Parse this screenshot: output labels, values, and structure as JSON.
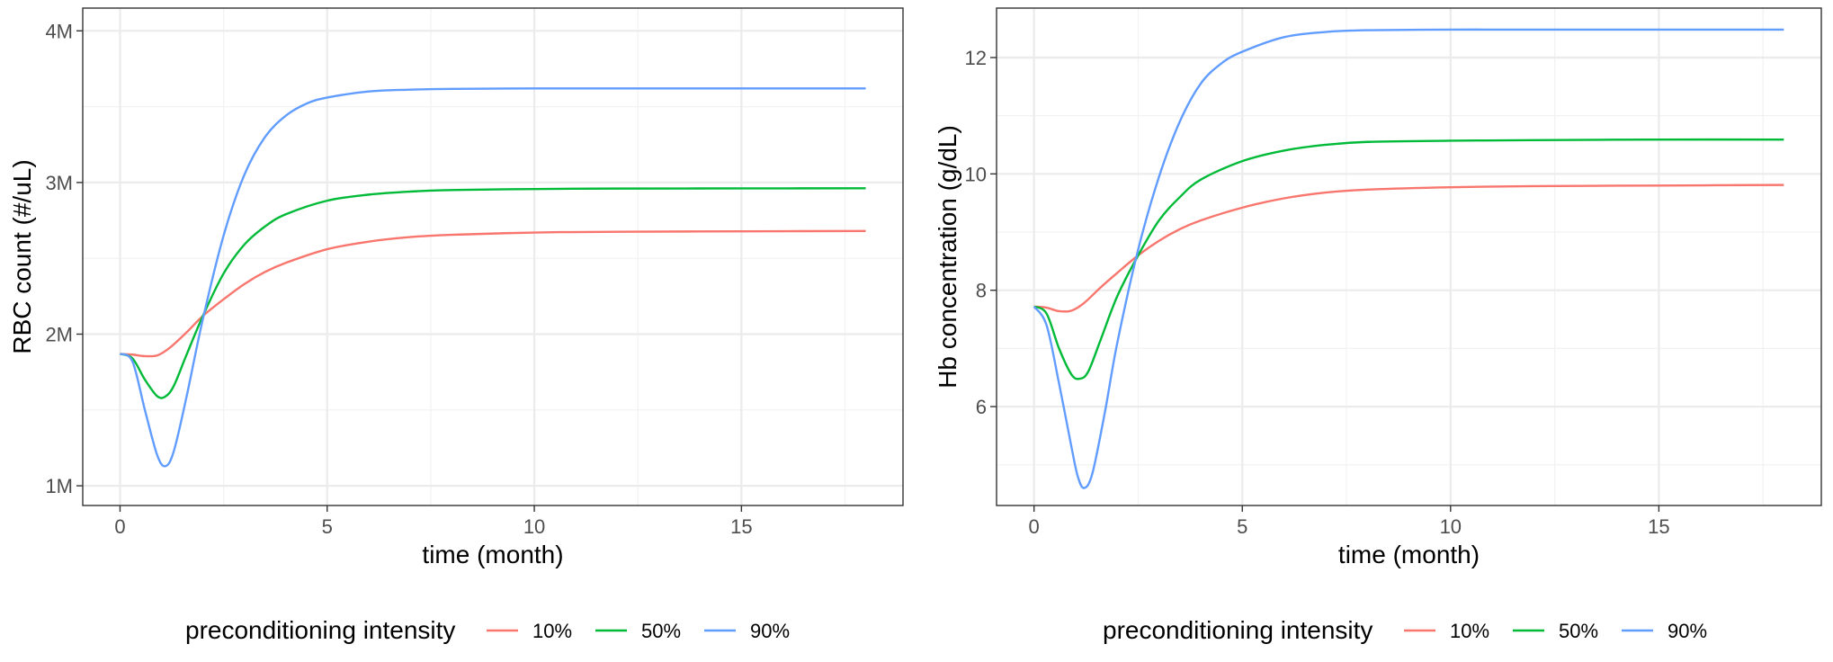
{
  "chart_data": [
    {
      "type": "line",
      "xlabel": "time (month)",
      "ylabel": "RBC count (#/uL)",
      "xlim": [
        -0.9,
        18.9
      ],
      "ylim": [
        870000,
        4150000
      ],
      "x_ticks": [
        0,
        5,
        10,
        15
      ],
      "x_tick_labels": [
        "0",
        "5",
        "10",
        "15"
      ],
      "y_ticks": [
        1000000,
        2000000,
        3000000,
        4000000
      ],
      "y_tick_labels": [
        "1M",
        "2M",
        "3M",
        "4M"
      ],
      "grid": true,
      "legend": {
        "title": "preconditioning intensity",
        "position": "bottom",
        "entries": [
          "10%",
          "50%",
          "90%"
        ]
      },
      "series": [
        {
          "name": "10%",
          "color": "#F8766D",
          "x": [
            0,
            0.3,
            0.6,
            0.9,
            1.2,
            1.6,
            2.0,
            2.5,
            3.0,
            3.5,
            4.0,
            5.0,
            6.0,
            7.0,
            8.0,
            10.0,
            12.0,
            15.0,
            18.0
          ],
          "y": [
            1870000,
            1865000,
            1855000,
            1860000,
            1910000,
            2010000,
            2120000,
            2230000,
            2330000,
            2410000,
            2470000,
            2560000,
            2610000,
            2640000,
            2655000,
            2670000,
            2675000,
            2678000,
            2680000
          ]
        },
        {
          "name": "50%",
          "color": "#00BA38",
          "x": [
            0,
            0.3,
            0.6,
            0.9,
            1.1,
            1.3,
            1.6,
            2.0,
            2.5,
            3.0,
            3.5,
            4.0,
            5.0,
            6.0,
            7.0,
            8.0,
            10.0,
            12.0,
            15.0,
            18.0
          ],
          "y": [
            1870000,
            1840000,
            1700000,
            1590000,
            1590000,
            1660000,
            1860000,
            2120000,
            2400000,
            2590000,
            2710000,
            2790000,
            2880000,
            2920000,
            2940000,
            2950000,
            2957000,
            2960000,
            2961000,
            2962000
          ]
        },
        {
          "name": "90%",
          "color": "#619CFF",
          "x": [
            0,
            0.3,
            0.6,
            0.9,
            1.1,
            1.3,
            1.6,
            2.0,
            2.5,
            3.0,
            3.5,
            4.0,
            4.5,
            5.0,
            6.0,
            7.0,
            8.0,
            10.0,
            12.0,
            15.0,
            18.0
          ],
          "y": [
            1870000,
            1820000,
            1500000,
            1200000,
            1130000,
            1230000,
            1580000,
            2100000,
            2650000,
            3050000,
            3300000,
            3440000,
            3520000,
            3560000,
            3600000,
            3612000,
            3617000,
            3620000,
            3620000,
            3620000,
            3620000
          ]
        }
      ]
    },
    {
      "type": "line",
      "xlabel": "time (month)",
      "ylabel": "Hb concentration (g/dL)",
      "xlim": [
        -0.9,
        18.9
      ],
      "ylim": [
        4.3,
        12.85
      ],
      "x_ticks": [
        0,
        5,
        10,
        15
      ],
      "x_tick_labels": [
        "0",
        "5",
        "10",
        "15"
      ],
      "y_ticks": [
        6,
        8,
        10,
        12
      ],
      "y_tick_labels": [
        "6",
        "8",
        "10",
        "12"
      ],
      "grid": true,
      "legend": {
        "title": "preconditioning intensity",
        "position": "bottom",
        "entries": [
          "10%",
          "50%",
          "90%"
        ]
      },
      "series": [
        {
          "name": "10%",
          "color": "#F8766D",
          "x": [
            0,
            0.3,
            0.6,
            0.9,
            1.2,
            1.6,
            2.0,
            2.5,
            3.0,
            3.5,
            4.0,
            5.0,
            6.0,
            7.0,
            8.0,
            10.0,
            12.0,
            15.0,
            18.0
          ],
          "y": [
            7.72,
            7.7,
            7.64,
            7.65,
            7.78,
            8.05,
            8.3,
            8.6,
            8.85,
            9.05,
            9.2,
            9.42,
            9.58,
            9.68,
            9.73,
            9.77,
            9.79,
            9.8,
            9.81
          ]
        },
        {
          "name": "50%",
          "color": "#00BA38",
          "x": [
            0,
            0.3,
            0.6,
            0.9,
            1.1,
            1.3,
            1.6,
            2.0,
            2.5,
            3.0,
            3.5,
            4.0,
            5.0,
            6.0,
            7.0,
            8.0,
            10.0,
            12.0,
            15.0,
            18.0
          ],
          "y": [
            7.72,
            7.6,
            7.0,
            6.55,
            6.48,
            6.6,
            7.15,
            7.9,
            8.6,
            9.2,
            9.6,
            9.9,
            10.22,
            10.4,
            10.5,
            10.55,
            10.57,
            10.58,
            10.59,
            10.59
          ]
        },
        {
          "name": "90%",
          "color": "#619CFF",
          "x": [
            0,
            0.3,
            0.6,
            0.9,
            1.05,
            1.2,
            1.4,
            1.7,
            2.0,
            2.5,
            3.0,
            3.5,
            4.0,
            4.5,
            5.0,
            6.0,
            7.0,
            8.0,
            10.0,
            12.0,
            15.0,
            18.0
          ],
          "y": [
            7.72,
            7.4,
            6.4,
            5.3,
            4.8,
            4.6,
            4.85,
            5.9,
            7.1,
            8.7,
            9.95,
            10.9,
            11.55,
            11.9,
            12.1,
            12.35,
            12.44,
            12.47,
            12.48,
            12.48,
            12.48,
            12.48
          ]
        }
      ]
    }
  ]
}
